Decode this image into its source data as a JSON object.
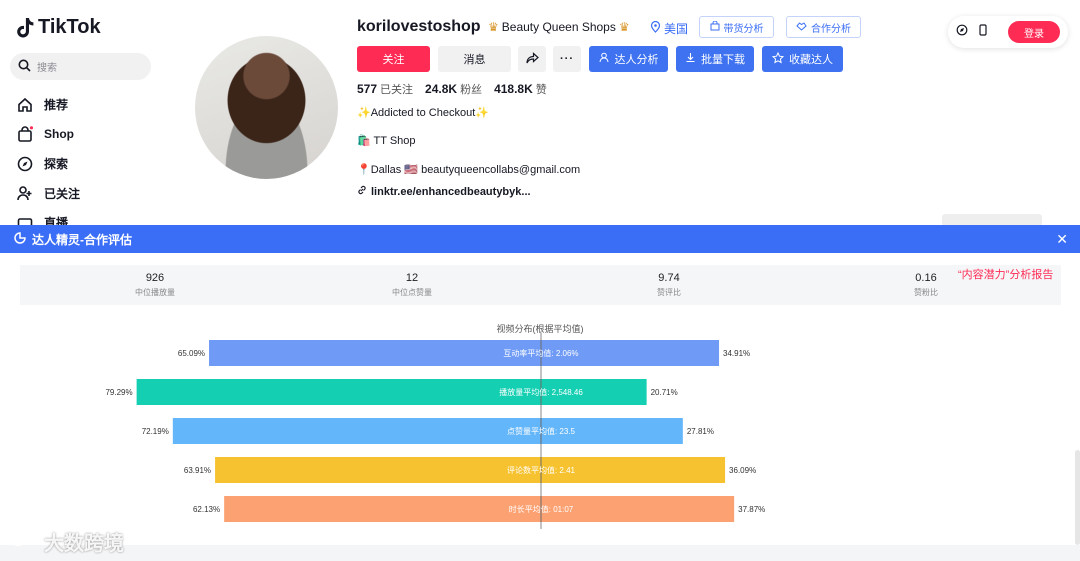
{
  "app": {
    "name": "TikTok"
  },
  "search": {
    "placeholder": "搜索"
  },
  "nav": [
    {
      "label": "推荐",
      "icon": "home-icon"
    },
    {
      "label": "Shop",
      "icon": "shop-bag-icon"
    },
    {
      "label": "探索",
      "icon": "compass-icon"
    },
    {
      "label": "已关注",
      "icon": "user-follow-icon"
    },
    {
      "label": "直播",
      "icon": "live-icon"
    }
  ],
  "profile": {
    "username": "korilovestoshop",
    "shop_name": "Beauty Queen Shops",
    "country": "美国",
    "tag_buttons": [
      "带货分析",
      "合作分析"
    ],
    "follow_label": "关注",
    "message_label": "消息",
    "actions": [
      "达人分析",
      "批量下载",
      "收藏达人"
    ],
    "stats": [
      {
        "value": "577",
        "label": "已关注"
      },
      {
        "value": "24.8K",
        "label": "粉丝"
      },
      {
        "value": "418.8K",
        "label": "赞"
      }
    ],
    "bio": [
      "✨Addicted to Checkout✨",
      "🛍️ TT Shop",
      "📍Dallas 🇺🇸 beautyqueencollabs@gmail.com"
    ],
    "link": "linktr.ee/enhancedbeautybyk..."
  },
  "top_right": {
    "login_label": "登录"
  },
  "panel": {
    "title": "达人精灵-合作评估",
    "report_link": "“内容潜力”分析报告",
    "metrics": [
      {
        "value": "926",
        "label": "中位播放量"
      },
      {
        "value": "12",
        "label": "中位点赞量"
      },
      {
        "value": "9.74",
        "label": "赞评比"
      },
      {
        "value": "0.16",
        "label": "赞粉比"
      }
    ]
  },
  "chart_data": {
    "type": "bar",
    "title": "视频分布(根据平均值)",
    "orientation": "horizontal-diverging",
    "rows": [
      {
        "label": "互动率平均值: 2.06%",
        "below": 65.09,
        "above": 34.91,
        "color": "#6f9bf6"
      },
      {
        "label": "播放量平均值: 2,548.46",
        "below": 79.29,
        "above": 20.71,
        "color": "#14cfb2"
      },
      {
        "label": "点赞量平均值: 23.5",
        "below": 72.19,
        "above": 27.81,
        "color": "#63b6fa"
      },
      {
        "label": "评论数平均值: 2.41",
        "below": 63.91,
        "above": 36.09,
        "color": "#f7c230"
      },
      {
        "label": "时长平均值: 01:07",
        "below": 62.13,
        "above": 37.87,
        "color": "#fca172"
      }
    ]
  },
  "watermark": "大数跨境"
}
